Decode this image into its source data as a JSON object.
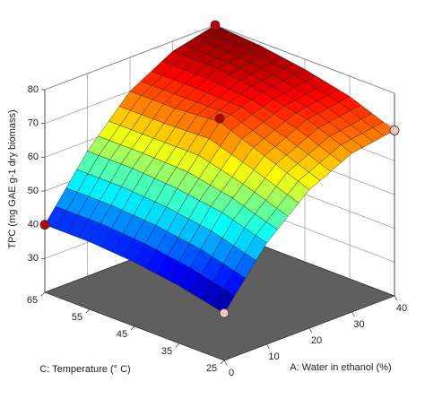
{
  "chart_data": {
    "type": "surface3d",
    "z_label": "TPC (mg GAE g-1 dry biomass)",
    "x_label": "A: Water in ethanol (%)",
    "y_label": "C: Temperature (° C)",
    "x": [
      0,
      10,
      20,
      30,
      40
    ],
    "y": [
      25,
      35,
      45,
      55,
      65
    ],
    "z": [
      [
        34,
        50,
        61,
        67,
        69
      ],
      [
        37,
        54,
        66,
        72,
        74
      ],
      [
        39,
        56,
        71,
        75,
        77
      ],
      [
        40,
        57,
        70,
        77,
        79
      ],
      [
        40,
        57,
        70,
        77,
        80
      ]
    ],
    "xlim": [
      0,
      40
    ],
    "ylim": [
      25,
      65
    ],
    "zlim": [
      20,
      80
    ],
    "xticks": [
      0,
      10,
      20,
      30,
      40
    ],
    "yticks": [
      25,
      35,
      45,
      55,
      65
    ],
    "zticks": [
      30,
      40,
      50,
      60,
      70,
      80
    ],
    "points": {
      "x": [
        0,
        0,
        40,
        20,
        40
      ],
      "y": [
        25,
        65,
        25,
        45,
        65
      ],
      "z": [
        34,
        40,
        69,
        72,
        80
      ],
      "colors": [
        "#f4c4c4",
        "#c00000",
        "#f4c4c4",
        "#c00000",
        "#c00000"
      ]
    },
    "floor_color": "#5f5f5f"
  }
}
